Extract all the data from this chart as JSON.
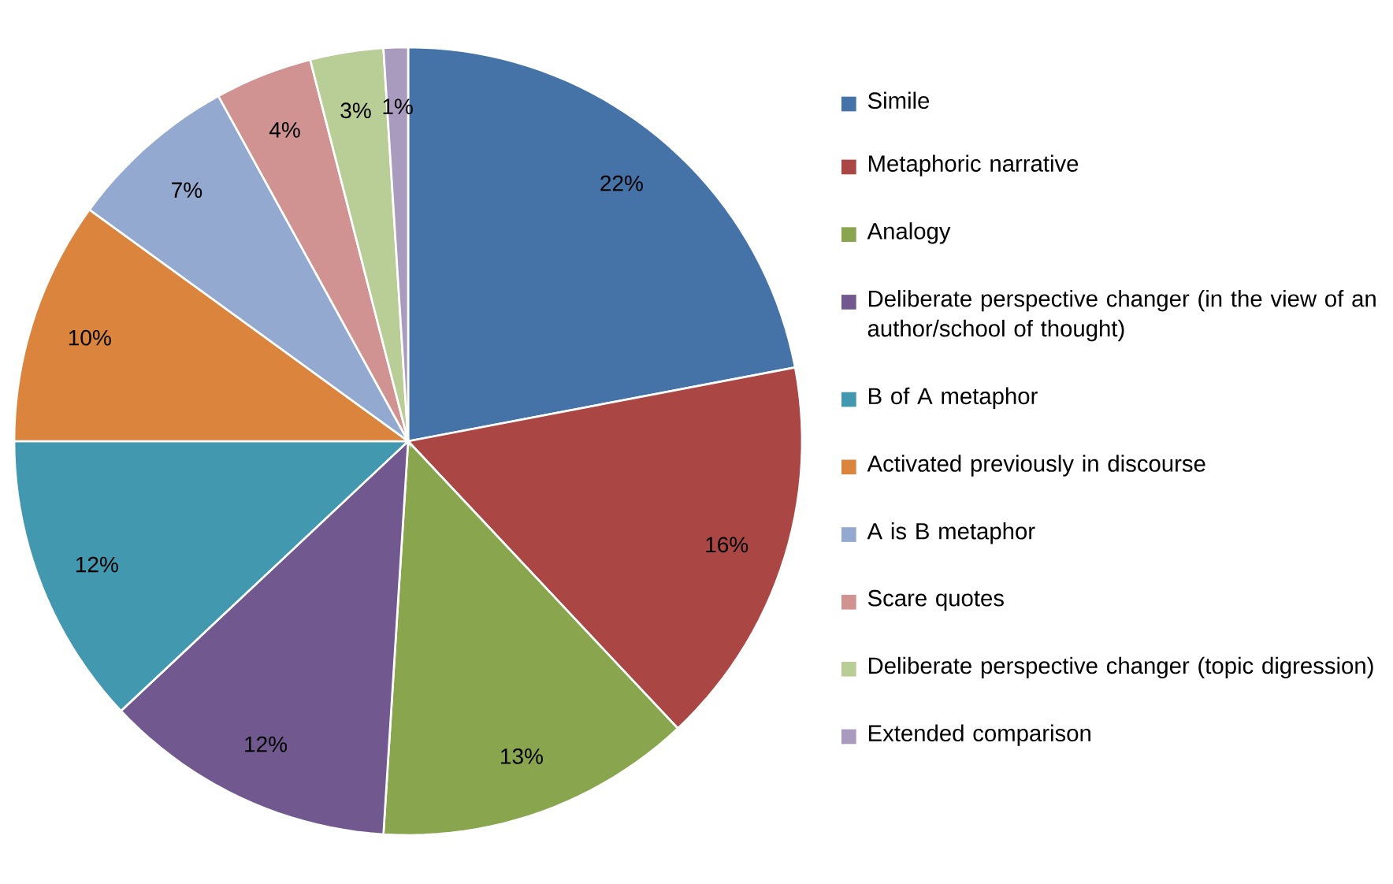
{
  "chart_data": {
    "type": "pie",
    "categories": [
      "Simile",
      "Metaphoric narrative",
      "Analogy",
      "Deliberate perspective changer (in the view of an author/school of thought)",
      "B of A metaphor",
      "Activated previously in discourse",
      "A is B metaphor",
      "Scare quotes",
      "Deliberate perspective changer (topic digression)",
      "Extended comparison"
    ],
    "values": [
      22,
      16,
      13,
      12,
      12,
      10,
      7,
      4,
      3,
      1
    ],
    "value_labels": [
      "22%",
      "16%",
      "13%",
      "12%",
      "12%",
      "10%",
      "7%",
      "4%",
      "3%",
      "1%"
    ],
    "colors": [
      "#4572a7",
      "#aa4643",
      "#89a54e",
      "#71588f",
      "#4198af",
      "#db843d",
      "#93a9cf",
      "#d19392",
      "#b9cd96",
      "#a99bbd"
    ],
    "legend": "right"
  }
}
